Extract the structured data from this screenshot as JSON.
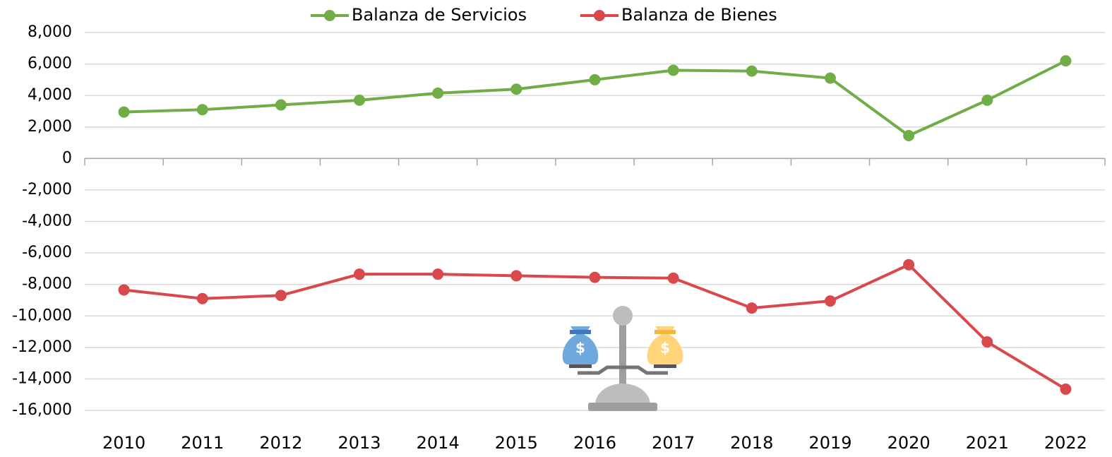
{
  "chart_data": {
    "type": "line",
    "categories": [
      "2010",
      "2011",
      "2012",
      "2013",
      "2014",
      "2015",
      "2016",
      "2017",
      "2018",
      "2019",
      "2020",
      "2021",
      "2022"
    ],
    "series": [
      {
        "name": "Balanza de Servicios",
        "color": "#70ad47",
        "values": [
          2950,
          3100,
          3400,
          3700,
          4150,
          4400,
          5000,
          5600,
          5550,
          5100,
          1450,
          3700,
          6200
        ]
      },
      {
        "name": "Balanza de Bienes",
        "color": "#d9484a",
        "values": [
          -8350,
          -8900,
          -8700,
          -7350,
          -7350,
          -7450,
          -7550,
          -7600,
          -9500,
          -9050,
          -6750,
          -11650,
          -14650
        ]
      }
    ],
    "ylim": [
      -16000,
      8000
    ],
    "yticks": [
      {
        "value": 8000,
        "label": "8,000"
      },
      {
        "value": 6000,
        "label": "6,000"
      },
      {
        "value": 4000,
        "label": "4,000"
      },
      {
        "value": 2000,
        "label": "2,000"
      },
      0,
      {
        "value": -2000,
        "label": "-2,000"
      },
      {
        "value": -4000,
        "label": "-4,000"
      },
      {
        "value": -6000,
        "label": "-6,000"
      },
      {
        "value": -8000,
        "label": "-8,000"
      },
      {
        "value": -10000,
        "label": "-10,000"
      },
      {
        "value": -12000,
        "label": "-12,000"
      },
      {
        "value": -14000,
        "label": "-14,000"
      },
      {
        "value": -16000,
        "label": "-16,000"
      }
    ],
    "grid": true,
    "legend": "top"
  }
}
